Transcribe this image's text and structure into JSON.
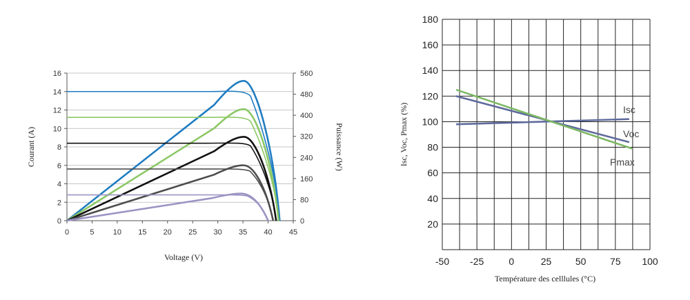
{
  "chart_data": [
    {
      "type": "line",
      "xlabel": "Voltage (V)",
      "ylabel": "Courant (A)",
      "y2label": "Puissance (W)",
      "xlim": [
        0,
        45
      ],
      "ylim": [
        0,
        16
      ],
      "y2lim": [
        0,
        560
      ],
      "xticks": [
        "0",
        "5",
        "10",
        "15",
        "20",
        "25",
        "30",
        "35",
        "40",
        "45"
      ],
      "yticks": [
        "0",
        "2",
        "4",
        "6",
        "8",
        "10",
        "12",
        "14",
        "16"
      ],
      "y2ticks": [
        "0",
        "80",
        "160",
        "240",
        "320",
        "400",
        "480",
        "560"
      ],
      "grid": "horizontal",
      "series": [
        {
          "color": "#1f7cc1",
          "isc": 14.0,
          "voc": 42.3,
          "pmax_w": 530,
          "vmp": 35.3
        },
        {
          "color": "#8cc866",
          "isc": 11.2,
          "voc": 42.1,
          "pmax_w": 423,
          "vmp": 35.3
        },
        {
          "color": "#111111",
          "isc": 8.4,
          "voc": 41.6,
          "pmax_w": 318,
          "vmp": 35.3
        },
        {
          "color": "#4d4d4d",
          "isc": 5.6,
          "voc": 41.0,
          "pmax_w": 210,
          "vmp": 35.2
        },
        {
          "color": "#9c94c4",
          "isc": 2.8,
          "voc": 40.0,
          "pmax_w": 103,
          "vmp": 34.7
        }
      ]
    },
    {
      "type": "line",
      "xlabel": "Température des celllules (°C)",
      "ylabel": "Isc, Voc, Pmax (%)",
      "xlim": [
        -50,
        100
      ],
      "ylim": [
        0,
        180
      ],
      "xticks": [
        "-50",
        "-25",
        "0",
        "25",
        "50",
        "75",
        "100"
      ],
      "yticks": [
        "20",
        "40",
        "60",
        "80",
        "100",
        "120",
        "140",
        "160",
        "180"
      ],
      "grid": "both",
      "series": [
        {
          "name": "Isc",
          "color": "#5e6a9c",
          "x": [
            -40,
            85
          ],
          "y": [
            98,
            102
          ]
        },
        {
          "name": "Voc",
          "color": "#5e6a9c",
          "x": [
            -40,
            85
          ],
          "y": [
            120,
            84
          ]
        },
        {
          "name": "Pmax",
          "color": "#7cb865",
          "x": [
            -40,
            87
          ],
          "y": [
            125,
            79
          ]
        }
      ]
    }
  ]
}
